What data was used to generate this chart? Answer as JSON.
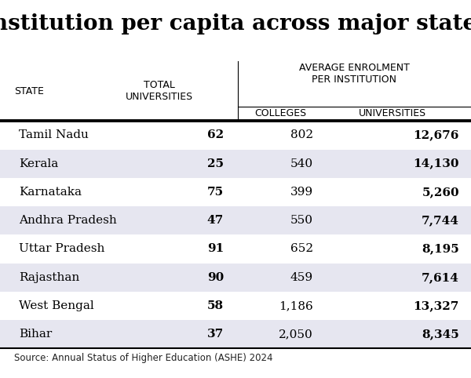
{
  "title": "Institution per capita across major states",
  "source": "Source: Annual Status of Higher Education (ASHE) 2024",
  "states": [
    "Tamil Nadu",
    "Kerala",
    "Karnataka",
    "Andhra Pradesh",
    "Uttar Pradesh",
    "Rajasthan",
    "West Bengal",
    "Bihar"
  ],
  "total_universities": [
    "62",
    "25",
    "75",
    "47",
    "91",
    "90",
    "58",
    "37"
  ],
  "colleges": [
    "802",
    "540",
    "399",
    "550",
    "652",
    "459",
    "1,186",
    "2,050"
  ],
  "universities": [
    "12,676",
    "14,130",
    "5,260",
    "7,744",
    "8,195",
    "7,614",
    "13,327",
    "8,345"
  ],
  "shaded_rows": [
    1,
    3,
    5,
    7
  ],
  "bg_color": "#ffffff",
  "shade_color": "#e6e6f0",
  "title_fontsize": 20,
  "header_fontsize": 9,
  "data_fontsize": 11,
  "source_fontsize": 8.5
}
